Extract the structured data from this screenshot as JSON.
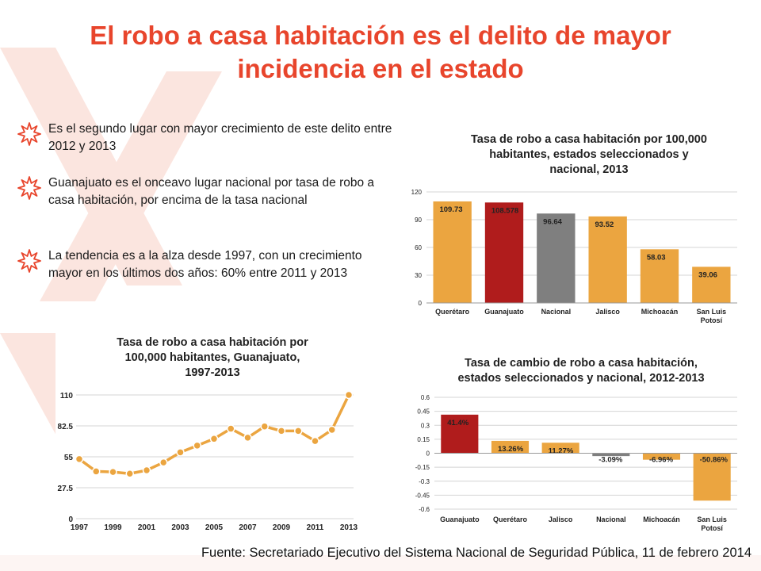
{
  "slide": {
    "title": "El robo a casa habitación es el delito de mayor incidencia en el estado",
    "source": "Fuente: Secretariado Ejecutivo del Sistema Nacional de Seguridad Pública, 11 de febrero 2014"
  },
  "bullets": [
    {
      "icon": "starburst-icon",
      "text": "Es el segundo lugar con mayor crecimiento de este delito entre 2012 y 2013"
    },
    {
      "icon": "starburst-icon",
      "text": "Guanajuato es el onceavo lugar nacional por tasa de robo a casa habitación, por encima de la tasa nacional"
    },
    {
      "icon": "starburst-icon",
      "text": "La tendencia es a la alza desde 1997, con un crecimiento mayor en los últimos dos años: 60% entre 2011 y 2013"
    }
  ],
  "colors": {
    "title": "#e8452c",
    "orange": "#eba540",
    "red": "#b01c1c",
    "gray": "#7f7f7f",
    "line": "#eba540"
  },
  "chart_data": [
    {
      "type": "bar",
      "title": "Tasa de robo a casa habitación por 100,000 habitantes, estados seleccionados y nacional, 2013",
      "categories": [
        "Querétaro",
        "Guanajuato",
        "Nacional",
        "Jalisco",
        "Michoacán",
        "San Luis Potosí"
      ],
      "values": [
        109.73,
        108.578,
        96.64,
        93.52,
        58.03,
        39.06
      ],
      "value_labels": [
        "109.73",
        "108.578",
        "96.64",
        "93.52",
        "58.03",
        "39.06"
      ],
      "bar_colors": [
        "#eba540",
        "#b01c1c",
        "#7f7f7f",
        "#eba540",
        "#eba540",
        "#eba540"
      ],
      "yticks": [
        "0",
        "30",
        "60",
        "90",
        "120"
      ],
      "ylim": [
        0,
        120
      ],
      "grid": true
    },
    {
      "type": "bar",
      "title": "Tasa de cambio de robo a casa habitación, estados seleccionados y nacional, 2012-2013",
      "categories": [
        "Guanajuato",
        "Querétaro",
        "Jalisco",
        "Nacional",
        "Michoacán",
        "San Luis Potosí"
      ],
      "values": [
        0.414,
        0.1326,
        0.1127,
        -0.0309,
        -0.0696,
        -0.5086
      ],
      "value_labels": [
        "41.4%",
        "13.26%",
        "11.27%",
        "-3.09%",
        "-6.96%",
        "-50.86%"
      ],
      "bar_colors": [
        "#b01c1c",
        "#eba540",
        "#eba540",
        "#7f7f7f",
        "#eba540",
        "#eba540"
      ],
      "yticks": [
        "0.6",
        "0.45",
        "0.3",
        "0.15",
        "0",
        "-0.15",
        "-0.3",
        "-0.45",
        "-0.6"
      ],
      "ylim": [
        -0.6,
        0.6
      ],
      "grid": true
    },
    {
      "type": "line",
      "title": "Tasa de robo a casa habitación por 100,000 habitantes, Guanajuato, 1997-2013",
      "x": [
        1997,
        1998,
        1999,
        2000,
        2001,
        2002,
        2003,
        2004,
        2005,
        2006,
        2007,
        2008,
        2009,
        2010,
        2011,
        2012,
        2013
      ],
      "values": [
        53,
        42,
        41.5,
        40,
        43,
        50,
        59,
        65,
        71,
        80,
        72,
        82,
        78,
        78,
        69,
        79,
        110
      ],
      "xticks": [
        "1997",
        "1999",
        "2001",
        "2003",
        "2005",
        "2007",
        "2009",
        "2011",
        "2013"
      ],
      "yticks": [
        "0",
        "27.5",
        "55",
        "82.5",
        "110"
      ],
      "ylim": [
        0,
        110
      ],
      "grid": true
    }
  ]
}
